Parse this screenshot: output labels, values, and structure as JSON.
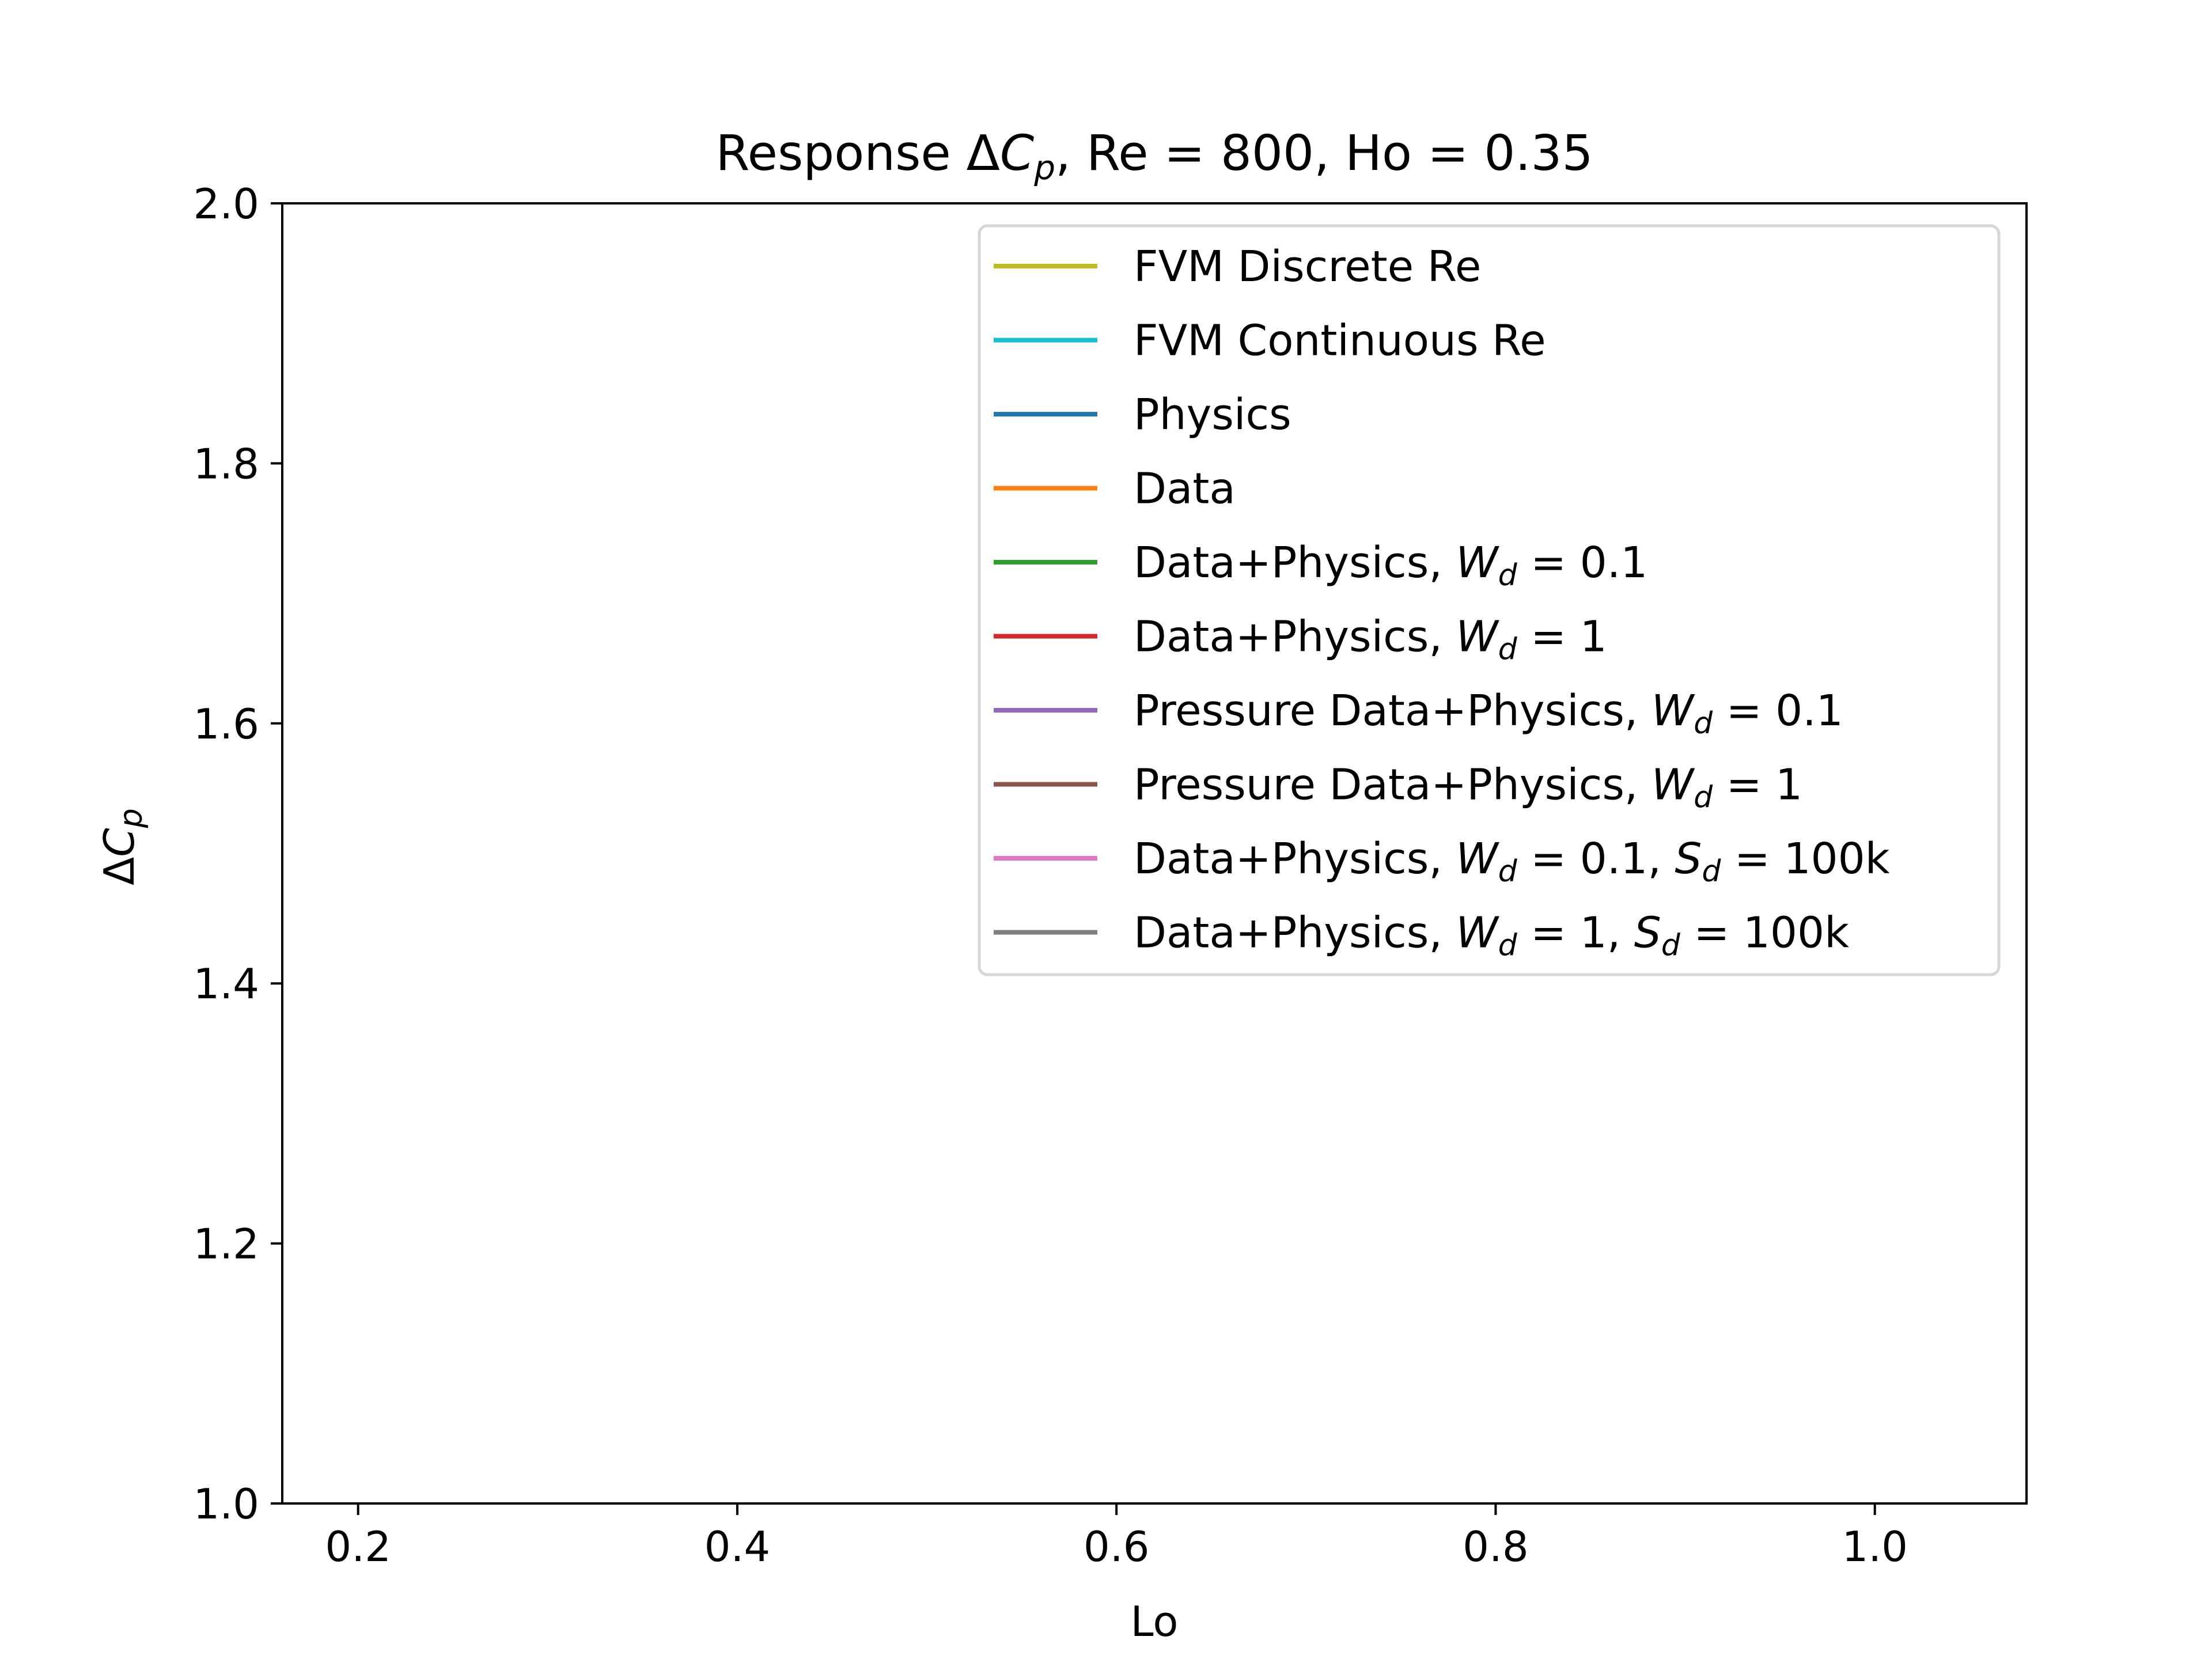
{
  "chart_data": {
    "type": "line",
    "title": "Response ΔC_p, Re = 800, Ho = 0.35",
    "title_parts": {
      "prefix": "Response Δ",
      "var": "C",
      "sub": "p",
      "suffix": ", Re = 800, Ho = 0.35"
    },
    "xlabel": "Lo",
    "ylabel": "ΔC_p",
    "ylabel_parts": {
      "prefix": "Δ",
      "var": "C",
      "sub": "p"
    },
    "xlim": [
      0.16,
      1.08
    ],
    "ylim": [
      1.0,
      2.0
    ],
    "xticks": [
      0.2,
      0.4,
      0.6,
      0.8,
      1.0
    ],
    "xtick_labels": [
      "0.2",
      "0.4",
      "0.6",
      "0.8",
      "1.0"
    ],
    "yticks": [
      1.0,
      1.2,
      1.4,
      1.6,
      1.8,
      2.0
    ],
    "ytick_labels": [
      "1.0",
      "1.2",
      "1.4",
      "1.6",
      "1.8",
      "2.0"
    ],
    "grid": false,
    "legend_position": "top-right",
    "series": [
      {
        "name": "FVM Discrete Re",
        "color": "#bcbd22",
        "x": [],
        "y": []
      },
      {
        "name": "FVM Continuous Re",
        "color": "#17becf",
        "x": [],
        "y": []
      },
      {
        "name": "Physics",
        "color": "#1f77b4",
        "x": [],
        "y": []
      },
      {
        "name": "Data",
        "color": "#ff7f0e",
        "x": [],
        "y": []
      },
      {
        "name": "Data+Physics, W_d = 0.1",
        "color": "#2ca02c",
        "x": [],
        "y": []
      },
      {
        "name": "Data+Physics, W_d = 1",
        "color": "#d62728",
        "x": [],
        "y": []
      },
      {
        "name": "Pressure Data+Physics, W_d = 0.1",
        "color": "#9467bd",
        "x": [],
        "y": []
      },
      {
        "name": "Pressure Data+Physics, W_d = 1",
        "color": "#8c564b",
        "x": [],
        "y": []
      },
      {
        "name": "Data+Physics, W_d = 0.1, S_d = 100k",
        "color": "#e377c2",
        "x": [],
        "y": []
      },
      {
        "name": "Data+Physics, W_d = 1, S_d = 100k",
        "color": "#7f7f7f",
        "x": [],
        "y": []
      }
    ]
  }
}
